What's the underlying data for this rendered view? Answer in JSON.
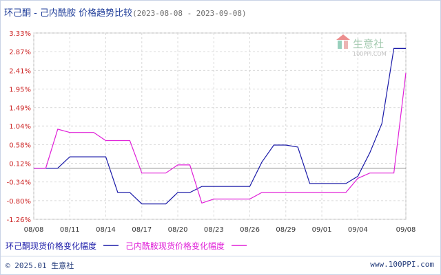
{
  "page": {
    "title": "环己酮 - 己内酰胺 价格趋势比较",
    "range_text": "(2023-08-08 - 2023-09-08)",
    "copyright": "© 2025.01 生意社",
    "site_url": "www.100PPI.com"
  },
  "watermark": {
    "brand": "生意社",
    "domain": "100PPI.COM"
  },
  "colors": {
    "series1": "#1a1aa8",
    "series2": "#e020d8",
    "axis_text": "#cc2222",
    "grid": "#d9d9d9",
    "zero_line": "#888888"
  },
  "chart_data": {
    "type": "line",
    "title": "",
    "xlabel": "",
    "ylabel": "",
    "yunit": "%",
    "y_ticks": [
      "3.33%",
      "2.87%",
      "2.41%",
      "1.95%",
      "1.49%",
      "1.04%",
      "0.58%",
      "0.12%",
      "-0.34%",
      "-0.80%",
      "-1.26%"
    ],
    "y_tick_values": [
      3.33,
      2.87,
      2.41,
      1.95,
      1.49,
      1.04,
      0.58,
      0.12,
      -0.34,
      -0.8,
      -1.26
    ],
    "ylim": [
      -1.26,
      3.33
    ],
    "x_ticks": [
      "08/08",
      "08/11",
      "08/14",
      "08/17",
      "08/20",
      "08/23",
      "08/26",
      "08/29",
      "09/01",
      "09/04",
      "09/08"
    ],
    "x": [
      "08/08",
      "08/09",
      "08/10",
      "08/11",
      "08/12",
      "08/13",
      "08/14",
      "08/15",
      "08/16",
      "08/17",
      "08/18",
      "08/19",
      "08/20",
      "08/21",
      "08/22",
      "08/23",
      "08/24",
      "08/25",
      "08/26",
      "08/27",
      "08/28",
      "08/29",
      "08/30",
      "08/31",
      "09/01",
      "09/02",
      "09/03",
      "09/04",
      "09/05",
      "09/06",
      "09/07",
      "09/08"
    ],
    "grid": true,
    "legend_position": "bottom",
    "series": [
      {
        "name": "环己酮现货价格变化幅度",
        "values": [
          0,
          0,
          0,
          0.28,
          0.28,
          0.28,
          0.28,
          -0.6,
          -0.6,
          -0.88,
          -0.88,
          -0.88,
          -0.6,
          -0.6,
          -0.45,
          -0.45,
          -0.45,
          -0.45,
          -0.45,
          0.15,
          0.57,
          0.57,
          0.52,
          -0.38,
          -0.38,
          -0.38,
          -0.38,
          -0.2,
          0.38,
          1.1,
          2.95,
          2.95
        ]
      },
      {
        "name": "己内酰胺现货价格变化幅度",
        "values": [
          0,
          0,
          0.96,
          0.88,
          0.88,
          0.88,
          0.68,
          0.68,
          0.68,
          -0.12,
          -0.12,
          -0.12,
          0.08,
          0.08,
          -0.86,
          -0.76,
          -0.76,
          -0.76,
          -0.76,
          -0.6,
          -0.6,
          -0.6,
          -0.6,
          -0.6,
          -0.6,
          -0.6,
          -0.6,
          -0.25,
          -0.12,
          -0.12,
          -0.12,
          2.35
        ]
      }
    ]
  }
}
